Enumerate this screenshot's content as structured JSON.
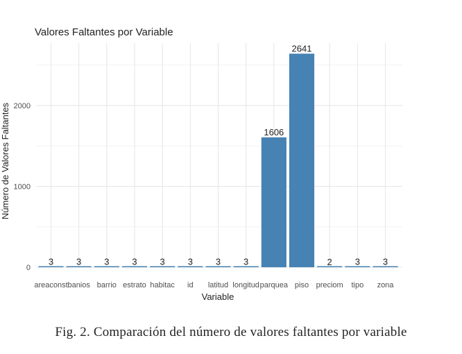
{
  "chart_data": {
    "type": "bar",
    "title": "Valores Faltantes por Variable",
    "xlabel": "Variable",
    "ylabel": "Número de Valores Faltantes",
    "categories": [
      "areaconst",
      "banios",
      "barrio",
      "estrato",
      "habitac",
      "id",
      "latitud",
      "longitud",
      "parquea",
      "piso",
      "preciom",
      "tipo",
      "zona"
    ],
    "values": [
      3,
      3,
      3,
      3,
      3,
      3,
      3,
      3,
      1606,
      2641,
      2,
      3,
      3
    ],
    "ylim": [
      0,
      2650
    ],
    "yticks": [
      0,
      1000,
      2000
    ],
    "grid": true,
    "bar_color": "#4682B4"
  },
  "caption": "Fig. 2.  Comparación del número de valores faltantes por variable"
}
